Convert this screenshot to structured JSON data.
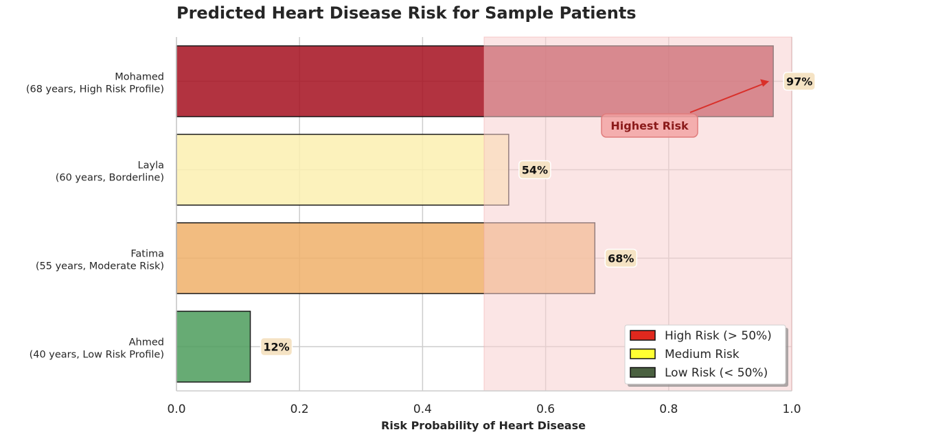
{
  "chart_data": {
    "type": "bar",
    "orientation": "horizontal",
    "title": "Predicted Heart Disease Risk for Sample Patients",
    "xlabel": "Risk Probability of Heart Disease",
    "ylabel": "",
    "xlim": [
      0,
      1.0
    ],
    "xticks": [
      "0.0",
      "0.2",
      "0.4",
      "0.6",
      "0.8",
      "1.0"
    ],
    "grid": true,
    "bars": [
      {
        "name": "Mohamed",
        "detail": "(68 years, High Risk Profile)",
        "value": 0.97,
        "label": "97%",
        "color": "#a50f1e"
      },
      {
        "name": "Layla",
        "detail": "(60 years, Borderline)",
        "value": 0.54,
        "label": "54%",
        "color": "#fcf0b0"
      },
      {
        "name": "Fatima",
        "detail": "(55 years, Moderate Risk)",
        "value": 0.68,
        "label": "68%",
        "color": "#f0b06a"
      },
      {
        "name": "Ahmed",
        "detail": "(40 years, Low Risk Profile)",
        "value": 0.12,
        "label": "12%",
        "color": "#4c9c5c"
      }
    ],
    "high_risk_region": {
      "from": 0.5,
      "to": 1.0,
      "color": "#f8d0d0"
    },
    "annotation": {
      "text": "Highest Risk",
      "target_value": 0.97,
      "target_bar": "Mohamed"
    },
    "legend": {
      "placement": "lower-right",
      "items": [
        {
          "label": "High Risk (> 50%)",
          "color": "#e0281e"
        },
        {
          "label": "Medium Risk",
          "color": "#ffff33"
        },
        {
          "label": "Low Risk (< 50%)",
          "color": "#4a6040"
        }
      ]
    }
  }
}
